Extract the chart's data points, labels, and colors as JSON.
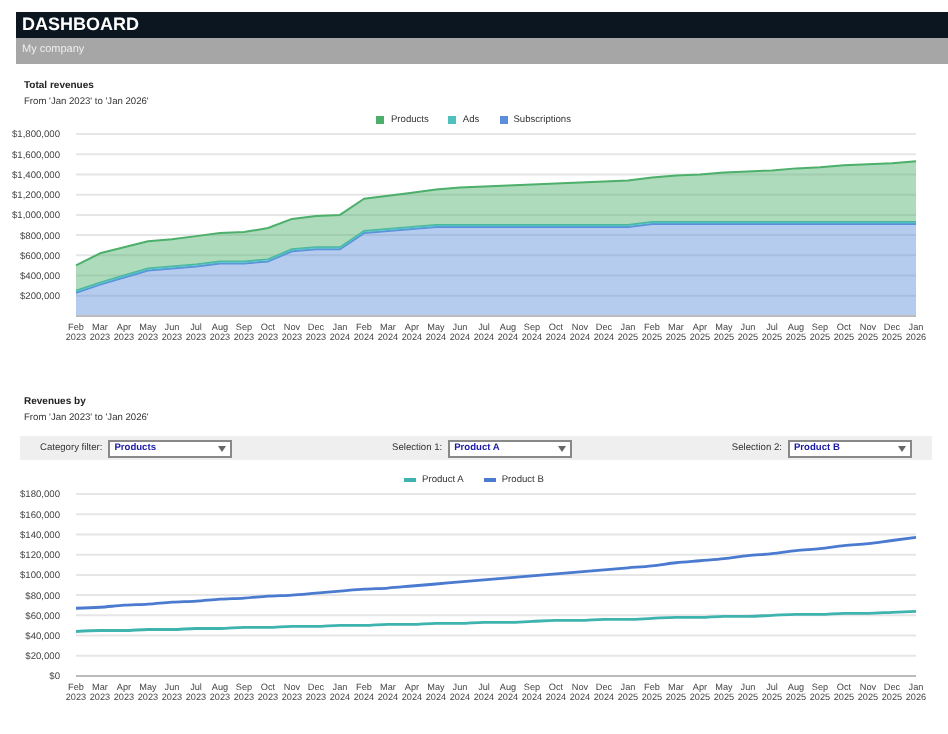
{
  "chart_data": [
    {
      "type": "area",
      "title": "Total revenues",
      "subtitle": "From 'Jan 2023' to 'Jan 2026'",
      "annotations": [
        "DASHBOARD",
        "My company"
      ],
      "categories": [
        "Feb 2023",
        "Mar 2023",
        "Apr 2023",
        "May 2023",
        "Jun 2023",
        "Jul 2023",
        "Aug 2023",
        "Sep 2023",
        "Oct 2023",
        "Nov 2023",
        "Dec 2023",
        "Jan 2024",
        "Feb 2024",
        "Mar 2024",
        "Apr 2024",
        "May 2024",
        "Jun 2024",
        "Jul 2024",
        "Aug 2024",
        "Sep 2024",
        "Oct 2024",
        "Nov 2024",
        "Dec 2024",
        "Jan 2025",
        "Feb 2025",
        "Mar 2025",
        "Apr 2025",
        "May 2025",
        "Jun 2025",
        "Jul 2025",
        "Aug 2025",
        "Sep 2025",
        "Oct 2025",
        "Nov 2025",
        "Dec 2025",
        "Jan 2026"
      ],
      "stacked": true,
      "series": [
        {
          "name": "Subscriptions",
          "color": "#5b8fdb",
          "values": [
            230000,
            310000,
            380000,
            450000,
            470000,
            490000,
            520000,
            520000,
            540000,
            640000,
            660000,
            660000,
            820000,
            840000,
            860000,
            880000,
            880000,
            880000,
            880000,
            880000,
            880000,
            880000,
            880000,
            880000,
            910000,
            910000,
            910000,
            910000,
            910000,
            910000,
            910000,
            910000,
            910000,
            910000,
            910000,
            910000
          ]
        },
        {
          "name": "Ads",
          "color": "#4fbfc0",
          "values": [
            20000,
            20000,
            20000,
            20000,
            20000,
            20000,
            20000,
            20000,
            20000,
            20000,
            20000,
            20000,
            20000,
            20000,
            20000,
            20000,
            20000,
            20000,
            20000,
            20000,
            20000,
            20000,
            20000,
            20000,
            20000,
            20000,
            20000,
            20000,
            20000,
            20000,
            20000,
            20000,
            20000,
            20000,
            20000,
            20000
          ]
        },
        {
          "name": "Products",
          "color": "#4caf6a",
          "values": [
            250000,
            290000,
            280000,
            270000,
            270000,
            280000,
            280000,
            290000,
            310000,
            300000,
            310000,
            320000,
            320000,
            330000,
            340000,
            350000,
            370000,
            380000,
            390000,
            400000,
            410000,
            420000,
            430000,
            440000,
            440000,
            460000,
            470000,
            490000,
            500000,
            510000,
            530000,
            540000,
            560000,
            570000,
            580000,
            600000
          ]
        }
      ],
      "ylim": [
        0,
        1800000
      ],
      "yticks": [
        {
          "value": 200000,
          "label": "$200,000"
        },
        {
          "value": 400000,
          "label": "$400,000"
        },
        {
          "value": 600000,
          "label": "$600,000"
        },
        {
          "value": 800000,
          "label": "$800,000"
        },
        {
          "value": 1000000,
          "label": "$1,000,000"
        },
        {
          "value": 1200000,
          "label": "$1,200,000"
        },
        {
          "value": 1400000,
          "label": "$1,400,000"
        },
        {
          "value": 1600000,
          "label": "$1,600,000"
        },
        {
          "value": 1800000,
          "label": "$1,800,000"
        }
      ],
      "grid": "y",
      "legend": "top",
      "marker": "none"
    },
    {
      "type": "line",
      "title": "Revenues by",
      "subtitle": "From 'Jan 2023' to 'Jan 2026'",
      "annotations": [
        "Category filter:",
        "Products",
        "Selection 1:",
        "Product A",
        "Selection 2:",
        "Product B"
      ],
      "categories": [
        "Feb 2023",
        "Mar 2023",
        "Apr 2023",
        "May 2023",
        "Jun 2023",
        "Jul 2023",
        "Aug 2023",
        "Sep 2023",
        "Oct 2023",
        "Nov 2023",
        "Dec 2023",
        "Jan 2024",
        "Feb 2024",
        "Mar 2024",
        "Apr 2024",
        "May 2024",
        "Jun 2024",
        "Jul 2024",
        "Aug 2024",
        "Sep 2024",
        "Oct 2024",
        "Nov 2024",
        "Dec 2024",
        "Jan 2025",
        "Feb 2025",
        "Mar 2025",
        "Apr 2025",
        "May 2025",
        "Jun 2025",
        "Jul 2025",
        "Aug 2025",
        "Sep 2025",
        "Oct 2025",
        "Nov 2025",
        "Dec 2025",
        "Jan 2026"
      ],
      "series": [
        {
          "name": "Product A",
          "color": "#3fb3ae",
          "values": [
            44000,
            45000,
            45000,
            46000,
            46000,
            47000,
            47000,
            48000,
            48000,
            49000,
            49000,
            50000,
            50000,
            51000,
            51000,
            52000,
            52000,
            53000,
            53000,
            54000,
            55000,
            55000,
            56000,
            56000,
            57000,
            58000,
            58000,
            59000,
            59000,
            60000,
            61000,
            61000,
            62000,
            62000,
            63000,
            64000
          ]
        },
        {
          "name": "Product B",
          "color": "#4a7bd0",
          "values": [
            67000,
            68000,
            70000,
            71000,
            73000,
            74000,
            76000,
            77000,
            79000,
            80000,
            82000,
            84000,
            86000,
            87000,
            89000,
            91000,
            93000,
            95000,
            97000,
            99000,
            101000,
            103000,
            105000,
            107000,
            109000,
            112000,
            114000,
            116000,
            119000,
            121000,
            124000,
            126000,
            129000,
            131000,
            134000,
            137000
          ]
        }
      ],
      "ylim": [
        0,
        180000
      ],
      "yticks": [
        {
          "value": 0,
          "label": "$0"
        },
        {
          "value": 20000,
          "label": "$20,000"
        },
        {
          "value": 40000,
          "label": "$40,000"
        },
        {
          "value": 60000,
          "label": "$60,000"
        },
        {
          "value": 80000,
          "label": "$80,000"
        },
        {
          "value": 100000,
          "label": "$100,000"
        },
        {
          "value": 120000,
          "label": "$120,000"
        },
        {
          "value": 140000,
          "label": "$140,000"
        },
        {
          "value": 160000,
          "label": "$160,000"
        },
        {
          "value": 180000,
          "label": "$180,000"
        }
      ],
      "grid": "y",
      "legend": "top",
      "marker": "none",
      "line_style": "solid"
    }
  ]
}
